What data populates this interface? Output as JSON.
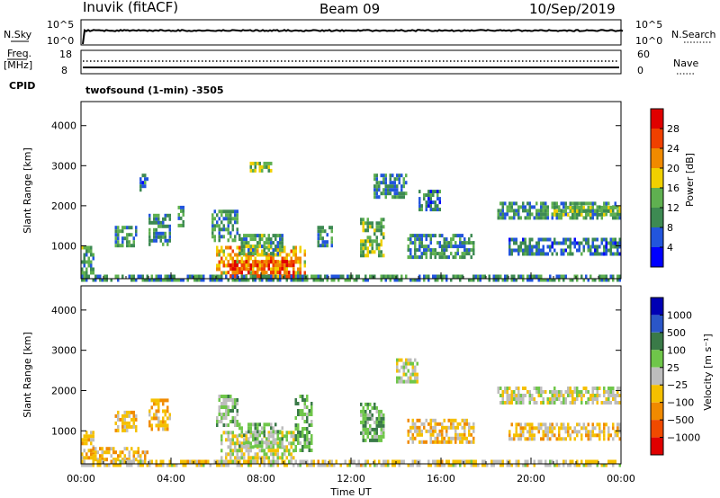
{
  "header": {
    "station": "Inuvik (fitACF)",
    "beam": "Beam 09",
    "date": "10/Sep/2019"
  },
  "colors": {
    "power_scale": [
      "#0000ff",
      "#2255dd",
      "#3d8a52",
      "#5fb050",
      "#f0d000",
      "#f08a00",
      "#f04000",
      "#e00000"
    ],
    "velocity_scale": [
      "#0000b4",
      "#2b56c8",
      "#3a7a48",
      "#6fc64a",
      "#bdbdbd",
      "#f5c000",
      "#f08a00",
      "#f04a00",
      "#e00000"
    ]
  },
  "top_panel": {
    "left_label": "N.Sky",
    "left_ticks": [
      "10^5",
      "10^0"
    ],
    "right_label": "N.Search",
    "right_ticks": [
      "10^5",
      "10^0"
    ]
  },
  "freq_panel": {
    "left_label_line1": "Freq.",
    "left_label_line2": "[MHz]",
    "left_ticks": [
      "18",
      "8"
    ],
    "right_label": "Nave",
    "right_ticks": [
      "60",
      "0"
    ],
    "cpid_label": "CPID",
    "cpid_value": "twofsound (1-min) -3505"
  },
  "chart_data": [
    {
      "type": "heatmap",
      "panel": "power",
      "ylabel": "Slant Range [km]",
      "yticks": [
        "1000",
        "2000",
        "3000",
        "4000"
      ],
      "ylim": [
        180,
        4600
      ],
      "xticks": [
        "00:00",
        "04:00",
        "08:00",
        "12:00",
        "16:00",
        "20:00",
        "00:00"
      ],
      "colorbar_label": "Power [dB]",
      "colorbar_ticks": [
        "4",
        "8",
        "12",
        "16",
        "20",
        "24",
        "28"
      ],
      "colorbar_range": [
        0,
        32
      ],
      "regions": [
        {
          "t": [
            0.0,
            0.6
          ],
          "r": [
            300,
            1000
          ],
          "v": 12
        },
        {
          "t": [
            1.5,
            2.5
          ],
          "r": [
            1000,
            1500
          ],
          "v": 11
        },
        {
          "t": [
            2.6,
            3.0
          ],
          "r": [
            2400,
            2800
          ],
          "v": 8
        },
        {
          "t": [
            3.0,
            4.0
          ],
          "r": [
            1000,
            1800
          ],
          "v": 10
        },
        {
          "t": [
            4.3,
            4.6
          ],
          "r": [
            1500,
            2000
          ],
          "v": 9
        },
        {
          "t": [
            5.8,
            7.0
          ],
          "r": [
            1100,
            1900
          ],
          "v": 10
        },
        {
          "t": [
            6.0,
            10.0
          ],
          "r": [
            250,
            1000
          ],
          "v": 20
        },
        {
          "t": [
            6.5,
            9.5
          ],
          "r": [
            250,
            650
          ],
          "v": 26
        },
        {
          "t": [
            7.0,
            9.0
          ],
          "r": [
            800,
            1300
          ],
          "v": 12
        },
        {
          "t": [
            7.5,
            8.5
          ],
          "r": [
            2900,
            3100
          ],
          "v": 14
        },
        {
          "t": [
            10.5,
            11.2
          ],
          "r": [
            1000,
            1500
          ],
          "v": 10
        },
        {
          "t": [
            12.4,
            13.5
          ],
          "r": [
            800,
            1700
          ],
          "v": 14
        },
        {
          "t": [
            13.0,
            14.5
          ],
          "r": [
            2200,
            2800
          ],
          "v": 9
        },
        {
          "t": [
            14.5,
            17.5
          ],
          "r": [
            700,
            1300
          ],
          "v": 10
        },
        {
          "t": [
            15.0,
            16.0
          ],
          "r": [
            1900,
            2400
          ],
          "v": 8
        },
        {
          "t": [
            18.5,
            24.0
          ],
          "r": [
            1700,
            2100
          ],
          "v": 11
        },
        {
          "t": [
            21.0,
            24.0
          ],
          "r": [
            1800,
            2000
          ],
          "v": 15
        },
        {
          "t": [
            19.0,
            24.0
          ],
          "r": [
            800,
            1200
          ],
          "v": 8
        },
        {
          "t": [
            0.0,
            24.0
          ],
          "r": [
            180,
            280
          ],
          "v": 10
        }
      ]
    },
    {
      "type": "heatmap",
      "panel": "velocity",
      "ylabel": "Slant Range [km]",
      "yticks": [
        "1000",
        "2000",
        "3000",
        "4000"
      ],
      "ylim": [
        180,
        4600
      ],
      "xticks": [
        "00:00",
        "04:00",
        "08:00",
        "12:00",
        "16:00",
        "20:00",
        "00:00"
      ],
      "xlabel": "Time UT",
      "colorbar_label": "Velocity [m s⁻¹]",
      "colorbar_ticks": [
        "1000",
        "500",
        "100",
        "25",
        "−25",
        "−100",
        "−500",
        "−1000"
      ],
      "colorbar_range": [
        -1000,
        1000
      ],
      "regions": [
        {
          "t": [
            0.0,
            0.6
          ],
          "r": [
            300,
            1000
          ],
          "v": -300
        },
        {
          "t": [
            0.5,
            3.0
          ],
          "r": [
            300,
            600
          ],
          "v": -250
        },
        {
          "t": [
            1.5,
            2.5
          ],
          "r": [
            1000,
            1500
          ],
          "v": -200
        },
        {
          "t": [
            3.0,
            4.0
          ],
          "r": [
            1000,
            1800
          ],
          "v": -300
        },
        {
          "t": [
            6.0,
            7.0
          ],
          "r": [
            1100,
            1900
          ],
          "v": 150
        },
        {
          "t": [
            6.2,
            9.5
          ],
          "r": [
            300,
            1000
          ],
          "v": 0
        },
        {
          "t": [
            7.0,
            9.0
          ],
          "r": [
            600,
            1200
          ],
          "v": 150
        },
        {
          "t": [
            9.5,
            10.3
          ],
          "r": [
            500,
            1900
          ],
          "v": 300
        },
        {
          "t": [
            12.4,
            13.5
          ],
          "r": [
            800,
            1700
          ],
          "v": 300
        },
        {
          "t": [
            14.5,
            17.5
          ],
          "r": [
            700,
            1300
          ],
          "v": -200
        },
        {
          "t": [
            14.0,
            15.0
          ],
          "r": [
            2200,
            2800
          ],
          "v": 0
        },
        {
          "t": [
            18.5,
            24.0
          ],
          "r": [
            1700,
            2100
          ],
          "v": 0
        },
        {
          "t": [
            19.0,
            24.0
          ],
          "r": [
            800,
            1200
          ],
          "v": -200
        },
        {
          "t": [
            0.0,
            24.0
          ],
          "r": [
            180,
            280
          ],
          "v": -100
        }
      ]
    }
  ]
}
